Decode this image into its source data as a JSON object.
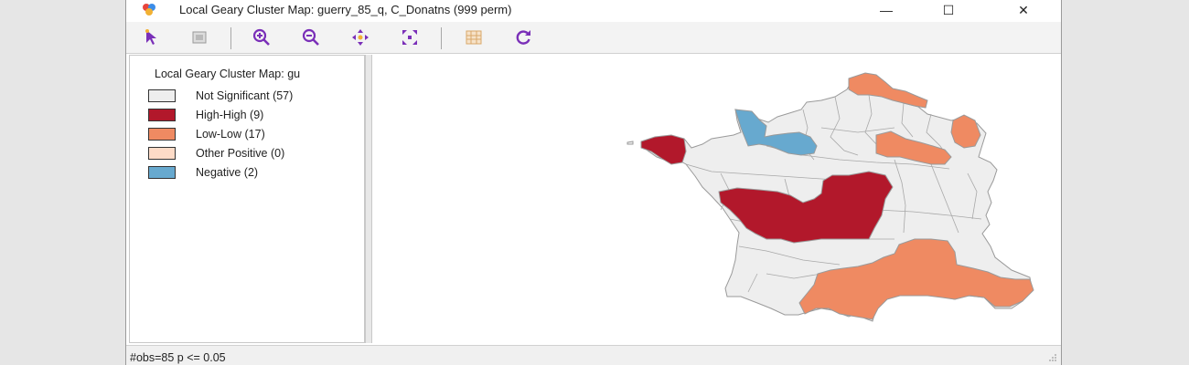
{
  "window": {
    "title": "Local Geary Cluster Map: guerry_85_q, C_Donatns (999 perm)",
    "controls": {
      "minimize": "—",
      "maximize": "☐",
      "close": "✕"
    }
  },
  "toolbar": {
    "icons": [
      "select-arrow-icon",
      "select-map-icon",
      "zoom-in-icon",
      "zoom-out-icon",
      "pan-icon",
      "fit-extent-icon",
      "basemap-icon",
      "refresh-icon"
    ]
  },
  "legend": {
    "title": "Local Geary Cluster Map: gu",
    "items": [
      {
        "label": "Not Significant (57)",
        "color": "#eeeeee"
      },
      {
        "label": "High-High (9)",
        "color": "#b2182b"
      },
      {
        "label": "Low-Low (17)",
        "color": "#ef8a62"
      },
      {
        "label": "Other Positive (0)",
        "color": "#fddbc7"
      },
      {
        "label": "Negative (2)",
        "color": "#67a9cf"
      }
    ]
  },
  "map": {
    "colors": {
      "ns": "#eeeeee",
      "hh": "#b2182b",
      "ll": "#ef8a62",
      "neg": "#67a9cf",
      "border": "#9a9a9a"
    }
  },
  "status": {
    "text": "#obs=85  p <= 0.05"
  }
}
